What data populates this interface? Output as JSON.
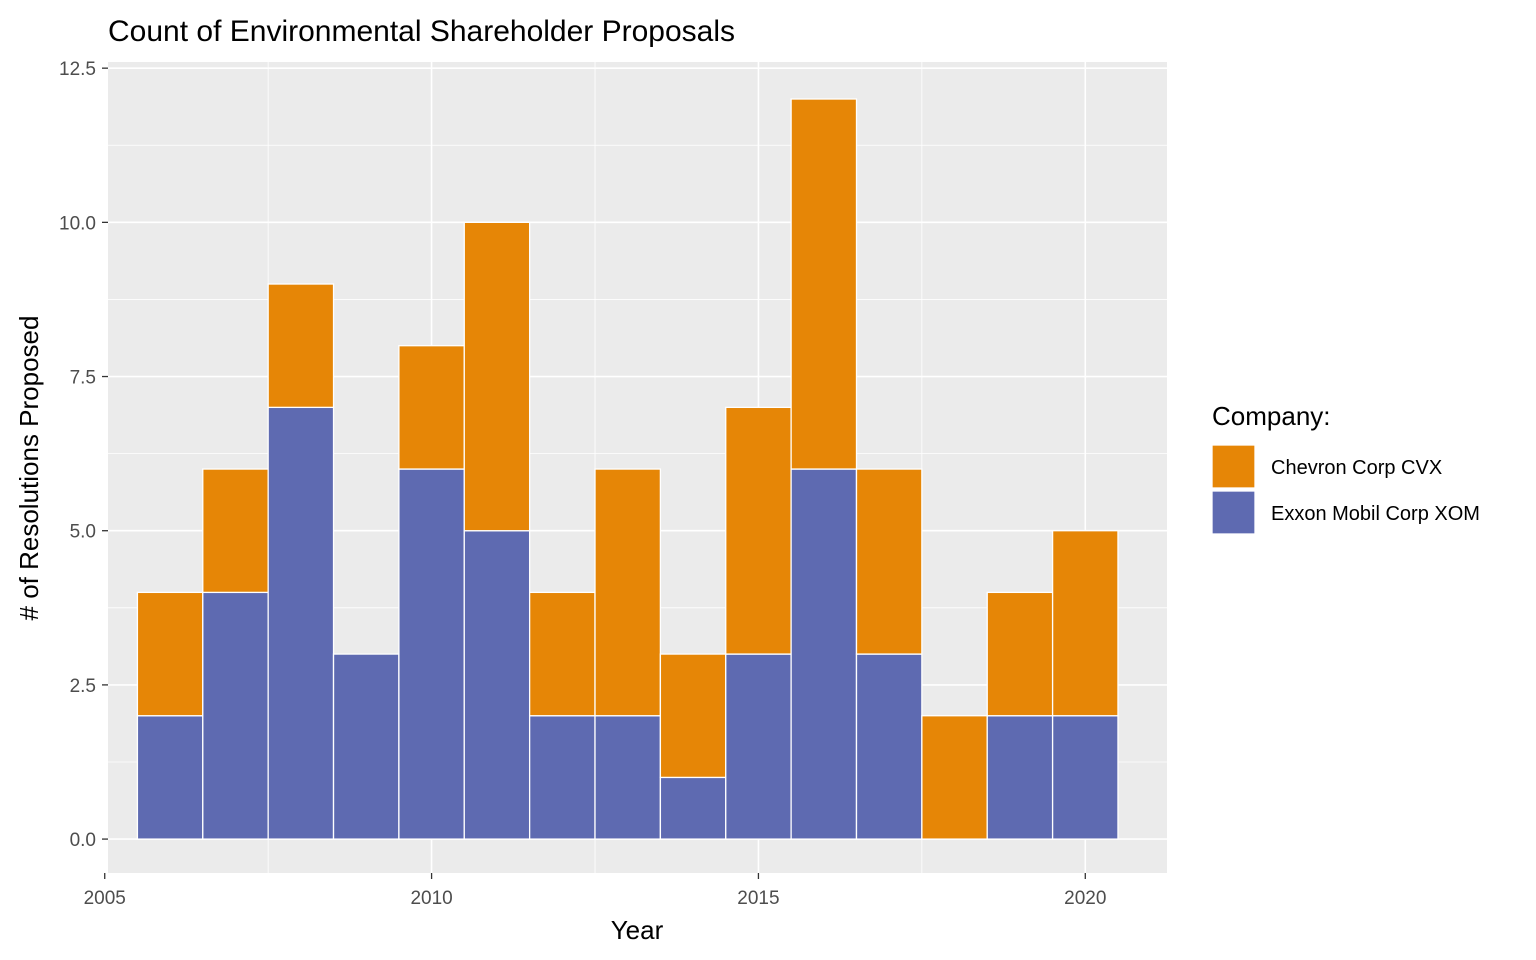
{
  "chart_data": {
    "type": "bar",
    "stacked": true,
    "title": "Count of Environmental Shareholder Proposals",
    "xlabel": "Year",
    "ylabel": "# of Resolutions Proposed",
    "x": [
      2006,
      2007,
      2008,
      2009,
      2010,
      2011,
      2012,
      2013,
      2014,
      2015,
      2016,
      2017,
      2018,
      2019,
      2020
    ],
    "series": [
      {
        "name": "Exxon Mobil Corp XOM",
        "color": "#5e6ab1",
        "values": [
          2,
          4,
          7,
          3,
          6,
          5,
          2,
          2,
          1,
          3,
          6,
          3,
          0,
          2,
          2
        ]
      },
      {
        "name": "Chevron Corp CVX",
        "color": "#e68606",
        "values": [
          2,
          2,
          2,
          0,
          2,
          5,
          2,
          4,
          2,
          4,
          6,
          3,
          2,
          2,
          3
        ]
      }
    ],
    "xlim": [
      2005.05,
      2021.25
    ],
    "ylim": [
      -0.55,
      12.6
    ],
    "xticks": [
      2005,
      2010,
      2015,
      2020
    ],
    "xtick_labels": [
      "2005",
      "2010",
      "2015",
      "2020"
    ],
    "yticks": [
      0,
      2.5,
      5,
      7.5,
      10,
      12.5
    ],
    "ytick_labels": [
      "0.0",
      "2.5",
      "5.0",
      "7.5",
      "10.0",
      "12.5"
    ],
    "grid": true,
    "panel_background": "#ebebeb",
    "legend": {
      "title": "Company:",
      "position": "right",
      "entries": [
        {
          "label": "Chevron Corp CVX",
          "color": "#e68606"
        },
        {
          "label": "Exxon Mobil Corp XOM",
          "color": "#5e6ab1"
        }
      ]
    }
  }
}
